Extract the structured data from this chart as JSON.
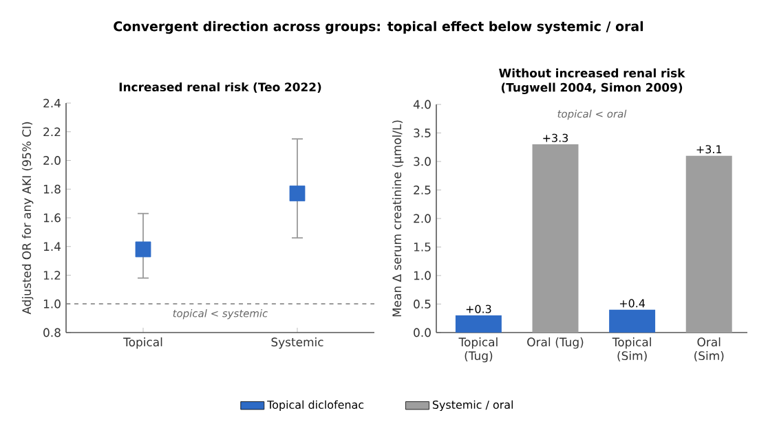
{
  "chart_data": [
    {
      "type": "scatter",
      "title": "Increased renal risk (Teo 2022)",
      "ylabel": "Adjusted OR for any AKI (95% CI)",
      "categories": [
        "Topical",
        "Systemic"
      ],
      "series": [
        {
          "color": "#2e6bc6",
          "values": [
            1.38,
            1.77
          ],
          "errors": [
            [
              1.18,
              1.63
            ],
            [
              1.46,
              2.15
            ]
          ]
        }
      ],
      "marker": "square",
      "ylim": [
        0.8,
        2.4
      ],
      "yticks": [
        0.8,
        {
          "value": 1,
          "label": "1.0"
        },
        1.2,
        1.4,
        1.6,
        1.8,
        {
          "value": 2,
          "label": "2.0"
        },
        2.2,
        2.4
      ],
      "ref_lines": [
        {
          "axis": "y",
          "value": 1,
          "color": "#777777",
          "line_style": "dashed"
        }
      ],
      "annotations": [
        "Convergent direction across groups: topical effect below systemic / oral",
        "topical < systemic"
      ]
    },
    {
      "type": "bar",
      "title": "Without increased renal risk (Tugwell 2004, Simon 2009)",
      "ylabel": "Mean Δ serum creatinine (μmol/L)",
      "categories": [
        "Topical (Tug)",
        "Oral (Tug)",
        "Topical (Sim)",
        "Oral (Sim)"
      ],
      "series": [
        {
          "name": "Topical diclofenac",
          "color": "#2e6bc6",
          "values": [
            0.3,
            null,
            0.4,
            null
          ],
          "value_labels": [
            "+0.3",
            null,
            "+0.4",
            null
          ]
        },
        {
          "name": "Systemic / oral",
          "color": "#9e9e9e",
          "values": [
            null,
            3.3,
            null,
            3.1
          ],
          "value_labels": [
            null,
            "+3.3",
            null,
            "+3.1"
          ]
        }
      ],
      "ylim": [
        0,
        4
      ],
      "yticks": [
        {
          "value": 0,
          "label": "0.0"
        },
        0.5,
        {
          "value": 1,
          "label": "1.0"
        },
        1.5,
        {
          "value": 2,
          "label": "2.0"
        },
        2.5,
        {
          "value": 3,
          "label": "3.0"
        },
        3.5,
        {
          "value": 4,
          "label": "4.0"
        }
      ],
      "legend": "bottom",
      "annotations": [
        "topical < oral"
      ]
    }
  ]
}
